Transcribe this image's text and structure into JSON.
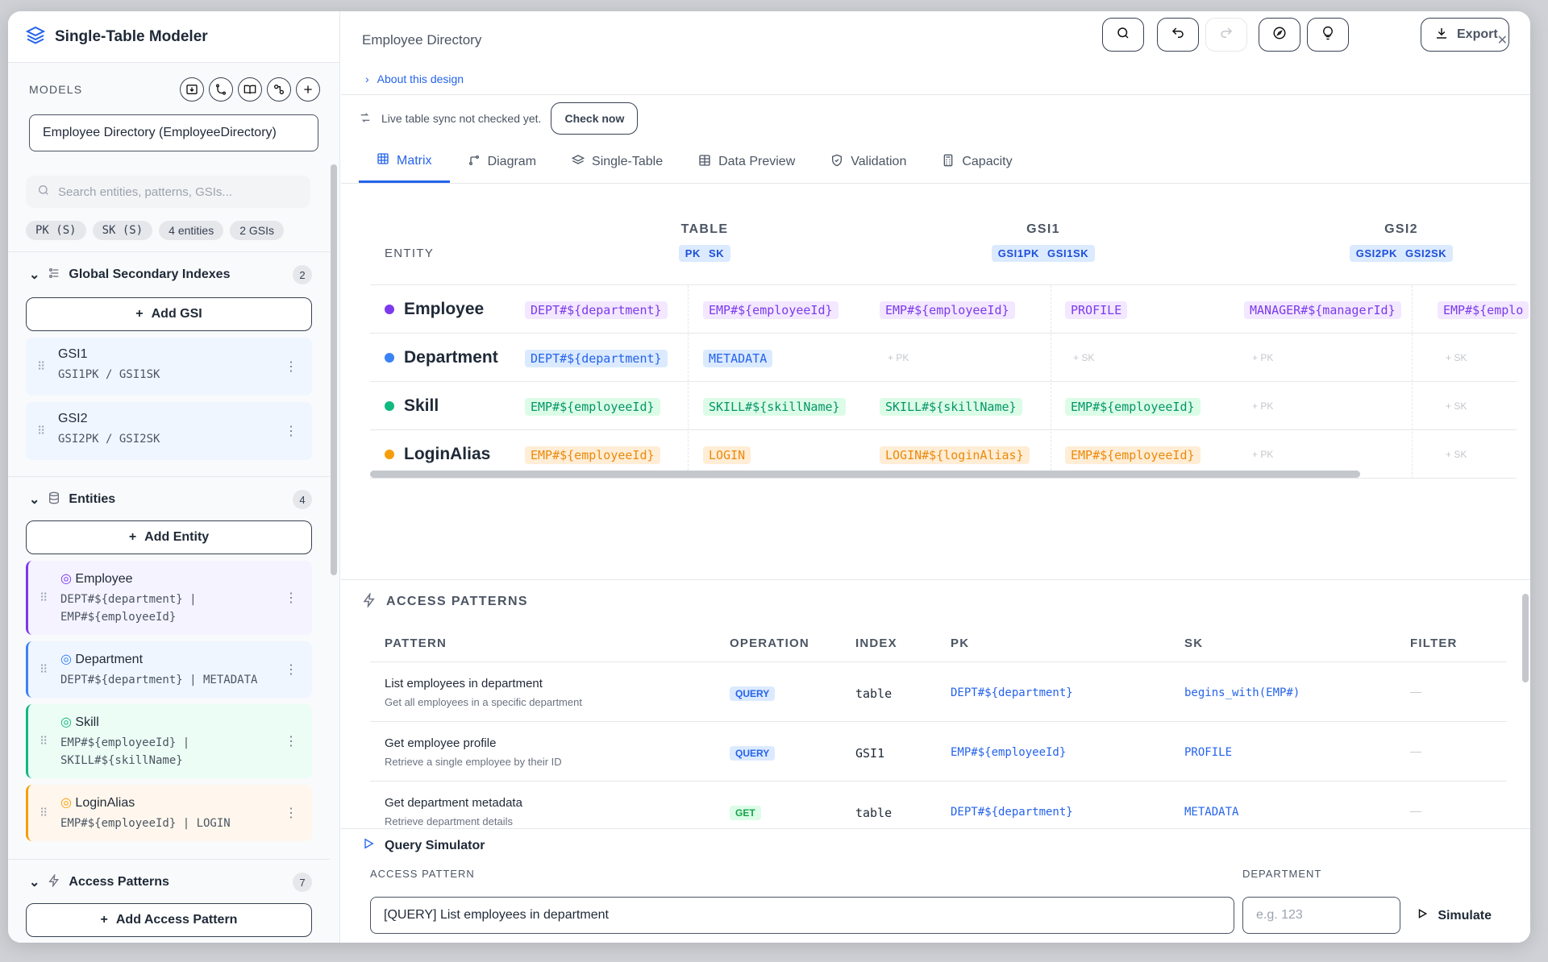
{
  "app": {
    "title": "Single-Table Modeler"
  },
  "sidebar": {
    "models_label": "MODELS",
    "model_selected": "Employee Directory (EmployeeDirectory)",
    "search_placeholder": "Search entities, patterns, GSIs...",
    "chips": [
      "PK (S)",
      "SK (S)",
      "4 entities",
      "2 GSIs"
    ],
    "gsi_section": {
      "title": "Global Secondary Indexes",
      "count": "2",
      "add_label": "Add GSI"
    },
    "gsis": [
      {
        "name": "GSI1",
        "keys": "GSI1PK / GSI1SK"
      },
      {
        "name": "GSI2",
        "keys": "GSI2PK / GSI2SK"
      }
    ],
    "entity_section": {
      "title": "Entities",
      "count": "4",
      "add_label": "Add Entity"
    },
    "entities": [
      {
        "name": "Employee",
        "keys_line1": "DEPT#${department} |",
        "keys_line2": "EMP#${employeeId}",
        "color": "#7c3aed",
        "bg": "#f5f3ff"
      },
      {
        "name": "Department",
        "keys_line1": "DEPT#${department} | METADATA",
        "keys_line2": "",
        "color": "#3b82f6",
        "bg": "#eff6ff"
      },
      {
        "name": "Skill",
        "keys_line1": "EMP#${employeeId} |",
        "keys_line2": "SKILL#${skillName}",
        "color": "#10b981",
        "bg": "#ecfdf5"
      },
      {
        "name": "LoginAlias",
        "keys_line1": "EMP#${employeeId} | LOGIN",
        "keys_line2": "",
        "color": "#f59e0b",
        "bg": "#fff7ed"
      }
    ],
    "ap_section": {
      "title": "Access Patterns",
      "count": "7",
      "add_label": "Add Access Pattern"
    }
  },
  "main": {
    "title": "Employee Directory",
    "export_label": "Export",
    "about_label": "About this design",
    "sync_text": "Live table sync not checked yet.",
    "check_label": "Check now",
    "tabs": [
      "Matrix",
      "Diagram",
      "Single-Table",
      "Data Preview",
      "Validation",
      "Capacity"
    ]
  },
  "matrix": {
    "entity_header": "ENTITY",
    "groups": [
      {
        "name": "TABLE",
        "pk": "PK",
        "sk": "SK"
      },
      {
        "name": "GSI1",
        "pk": "GSI1PK",
        "sk": "GSI1SK"
      },
      {
        "name": "GSI2",
        "pk": "GSI2PK",
        "sk": "GSI2SK"
      }
    ],
    "rows": [
      {
        "name": "Employee",
        "color": "#7c3aed",
        "bg": "#f3e8ff",
        "fg": "#7c3aed",
        "table_pk": "DEPT#${department}",
        "table_sk": "EMP#${employeeId}",
        "gsi1_pk": "EMP#${employeeId}",
        "gsi1_sk": "PROFILE",
        "gsi2_pk": "MANAGER#${managerId}",
        "gsi2_sk": "EMP#${emplo"
      },
      {
        "name": "Department",
        "color": "#3b82f6",
        "bg": "#dbeafe",
        "fg": "#2563eb",
        "table_pk": "DEPT#${department}",
        "table_sk": "METADATA",
        "gsi1_pk": "",
        "gsi1_sk": "",
        "gsi2_pk": "",
        "gsi2_sk": ""
      },
      {
        "name": "Skill",
        "color": "#10b981",
        "bg": "#dcfce7",
        "fg": "#059669",
        "table_pk": "EMP#${employeeId}",
        "table_sk": "SKILL#${skillName}",
        "gsi1_pk": "SKILL#${skillName}",
        "gsi1_sk": "EMP#${employeeId}",
        "gsi2_pk": "",
        "gsi2_sk": ""
      },
      {
        "name": "LoginAlias",
        "color": "#f59e0b",
        "bg": "#ffedd5",
        "fg": "#ea8a0c",
        "table_pk": "EMP#${employeeId}",
        "table_sk": "LOGIN",
        "gsi1_pk": "LOGIN#${loginAlias}",
        "gsi1_sk": "EMP#${employeeId}",
        "gsi2_pk": "",
        "gsi2_sk": ""
      }
    ],
    "ph_pk": "+ PK",
    "ph_sk": "+ SK"
  },
  "access_patterns": {
    "title": "ACCESS PATTERNS",
    "headers": [
      "PATTERN",
      "OPERATION",
      "INDEX",
      "PK",
      "SK",
      "FILTER"
    ],
    "rows": [
      {
        "name": "List employees in department",
        "desc": "Get all employees in a specific department",
        "op": "QUERY",
        "index": "table",
        "pk": "DEPT#${department}",
        "sk": "begins_with(EMP#)",
        "filter": "—"
      },
      {
        "name": "Get employee profile",
        "desc": "Retrieve a single employee by their ID",
        "op": "QUERY",
        "index": "GSI1",
        "pk": "EMP#${employeeId}",
        "sk": "PROFILE",
        "filter": "—"
      },
      {
        "name": "Get department metadata",
        "desc": "Retrieve department details",
        "op": "GET",
        "index": "table",
        "pk": "DEPT#${department}",
        "sk": "METADATA",
        "filter": "—"
      }
    ]
  },
  "simulator": {
    "title": "Query Simulator",
    "pattern_label": "ACCESS PATTERN",
    "pattern_value": "[QUERY] List employees in department",
    "dept_label": "DEPARTMENT",
    "dept_placeholder": "e.g. 123",
    "simulate_label": "Simulate"
  }
}
